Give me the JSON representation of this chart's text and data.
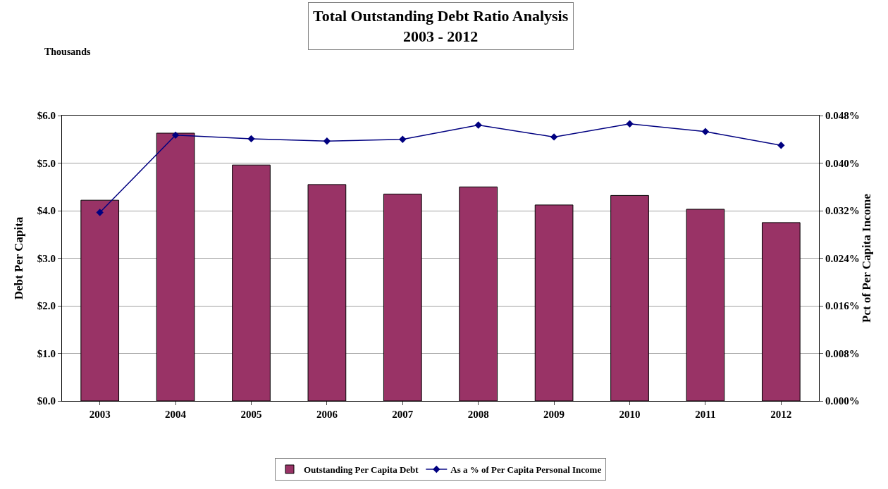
{
  "chart_data": {
    "type": "bar",
    "title": "Total Outstanding Debt Ratio Analysis\n2003 - 2012",
    "ylabel": "Debt Per Capita",
    "y2label": "Pct of Per Capita Income",
    "annotations": [
      "Thousands"
    ],
    "categories": [
      "2003",
      "2004",
      "2005",
      "2006",
      "2007",
      "2008",
      "2009",
      "2010",
      "2011",
      "2012"
    ],
    "series": [
      {
        "name": "Outstanding Per Capita Debt",
        "color": "#993366",
        "values": [
          4.22,
          5.63,
          4.96,
          4.55,
          4.35,
          4.5,
          4.12,
          4.32,
          4.03,
          3.75
        ]
      },
      {
        "name": "As a % of Per Capita Personal Income",
        "type": "line",
        "axis": "y2",
        "color": "#000080",
        "marker": "diamond",
        "values": [
          0.0317,
          0.0447,
          0.0441,
          0.0437,
          0.044,
          0.0464,
          0.0444,
          0.0466,
          0.0453,
          0.043
        ]
      }
    ],
    "ylim": [
      0,
      6
    ],
    "yticks": [
      {
        "value": 0,
        "label": "$0.0"
      },
      {
        "value": 1,
        "label": "$1.0"
      },
      {
        "value": 2,
        "label": "$2.0"
      },
      {
        "value": 3,
        "label": "$3.0"
      },
      {
        "value": 4,
        "label": "$4.0"
      },
      {
        "value": 5,
        "label": "$5.0"
      },
      {
        "value": 6,
        "label": "$6.0"
      }
    ],
    "y2lim": [
      0,
      0.048
    ],
    "y2ticks": [
      {
        "value": 0,
        "label": "0.000%"
      },
      {
        "value": 0.008,
        "label": "0.008%"
      },
      {
        "value": 0.016,
        "label": "0.016%"
      },
      {
        "value": 0.024,
        "label": "0.024%"
      },
      {
        "value": 0.032,
        "label": "0.032%"
      },
      {
        "value": 0.04,
        "label": "0.040%"
      },
      {
        "value": 0.048,
        "label": "0.048%"
      }
    ],
    "grid": "y",
    "legend": "bottom"
  }
}
